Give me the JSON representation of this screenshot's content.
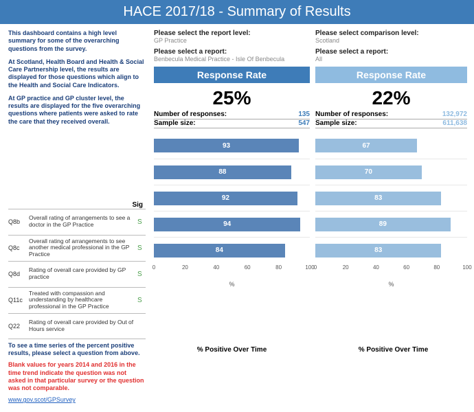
{
  "header": {
    "title": "HACE 2017/18 - Summary of Results"
  },
  "intro": {
    "p1": "This dashboard contains a high level summary for some of the overarching questions from the survey.",
    "p2": "At Scotland, Health Board and Health & Social Care Partnership level, the results are displayed for those questions which align to the Health and Social Care Indicators.",
    "p3": "At GP practice and GP cluster level, the results are displayed for the five overarching questions where patients were asked to rate the care that they received overall."
  },
  "selectors": {
    "report_level_label": "Please select the report level:",
    "report_level_value": "GP Practice",
    "report_label": "Please select a report:",
    "report_value": "Benbecula Medical Practice - Isle Of Benbecula",
    "comparison_level_label": "Please select comparison level:",
    "comparison_level_value": "Scotland",
    "comparison_report_value": "All"
  },
  "panels": {
    "response_rate_label": "Response Rate",
    "number_responses_label": "Number of responses:",
    "sample_size_label": "Sample size:",
    "axis_label": "%",
    "time_label": "% Positive Over Time",
    "xticks": [
      0,
      20,
      40,
      60,
      80,
      100
    ],
    "primary": {
      "response_rate": "25%",
      "number_responses": "135",
      "sample_size": "547",
      "bar_color": "#5a85b8",
      "banner_color": "#3e7cb8"
    },
    "comparison": {
      "response_rate": "22%",
      "number_responses": "132,972",
      "sample_size": "611,638",
      "bar_color": "#99bede",
      "banner_color": "#8fbbe0"
    }
  },
  "sig_header": "Sig",
  "questions": [
    {
      "code": "Q8b",
      "text": "Overall rating of arrangements to see a doctor in the GP Practice",
      "sig": "S",
      "primary": 93,
      "comparison": 67
    },
    {
      "code": "Q8c",
      "text": "Overall rating of arrangements to see another medical professional in the GP Practice",
      "sig": "S",
      "primary": 88,
      "comparison": 70
    },
    {
      "code": "Q8d",
      "text": "Rating of overall care provided by GP practice",
      "sig": "S",
      "primary": 92,
      "comparison": 83
    },
    {
      "code": "Q11c",
      "text": "Treated with compassion and understanding by healthcare professional in the GP Practice",
      "sig": "S",
      "primary": 94,
      "comparison": 89
    },
    {
      "code": "Q22",
      "text": "Rating of overall care provided by Out of Hours service",
      "sig": "",
      "primary": 84,
      "comparison": 83
    }
  ],
  "footer": {
    "note": "To see a time series of the percent positive results, please select a question from above.",
    "warn": "Blank values for years 2014 and 2016 in the time trend indicate the question was not asked in that particular survey or the question was not comparable.",
    "link": "www.gov.scot/GPSurvey"
  }
}
